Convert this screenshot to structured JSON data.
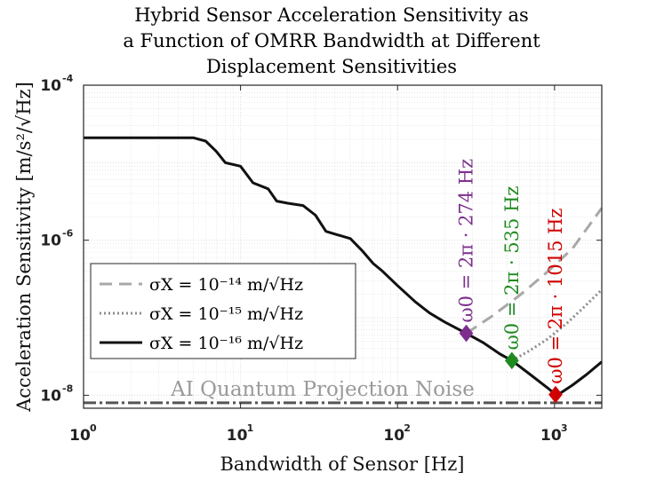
{
  "chart_data": {
    "type": "line",
    "title": [
      "Hybrid Sensor Acceleration Sensitivity as",
      "a Function of OMRR Bandwidth at Different",
      "Displacement Sensitivities"
    ],
    "xlabel": "Bandwidth of Sensor [Hz]",
    "ylabel": "Acceleration Sensitivity [m/s²/√Hz]",
    "xscale": "log",
    "yscale": "log",
    "xlim": [
      1,
      2000
    ],
    "ylim": [
      6.8e-09,
      0.0001
    ],
    "grid": true,
    "legend_position": "lower-left",
    "x_ticks": [
      {
        "value": 1,
        "base": "10",
        "exp": "0"
      },
      {
        "value": 10,
        "base": "10",
        "exp": "1"
      },
      {
        "value": 100,
        "base": "10",
        "exp": "2"
      },
      {
        "value": 1000,
        "base": "10",
        "exp": "3"
      }
    ],
    "y_ticks": [
      {
        "value": 1e-08,
        "base": "10",
        "exp": "-8"
      },
      {
        "value": 1e-06,
        "base": "10",
        "exp": "-6"
      },
      {
        "value": 0.0001,
        "base": "10",
        "exp": "-4"
      }
    ],
    "series": [
      {
        "name": "σx = 10^-14 m/√Hz",
        "legend_label": "σX = 10⁻¹⁴ m/√Hz",
        "style": "dashed",
        "color": "#a8a8a8",
        "x": [
          274,
          400,
          600,
          900,
          1300,
          2000
        ],
        "y": [
          6.3e-08,
          1.05e-07,
          1.95e-07,
          3.9e-07,
          7.8e-07,
          2.6e-06
        ]
      },
      {
        "name": "σx = 10^-15 m/√Hz",
        "legend_label": "σX = 10⁻¹⁵ m/√Hz",
        "style": "dotted",
        "color": "#8c8c8c",
        "x": [
          535,
          700,
          900,
          1200,
          1500,
          2000
        ],
        "y": [
          2.8e-08,
          3.8e-08,
          5.3e-08,
          8.5e-08,
          1.3e-07,
          2.3e-07
        ]
      },
      {
        "name": "σx = 10^-16 m/√Hz",
        "legend_label": "σX = 10⁻¹⁶ m/√Hz",
        "style": "solid",
        "color": "#111111",
        "x": [
          1,
          5,
          6,
          7,
          8,
          10,
          12,
          15,
          17,
          20,
          25,
          30,
          35,
          40,
          50,
          60,
          70,
          80,
          100,
          130,
          160,
          200,
          274,
          350,
          450,
          535,
          700,
          900,
          1015,
          1100,
          1300,
          1600,
          2000
        ],
        "y": [
          2.1e-05,
          2.1e-05,
          1.9e-05,
          1.4e-05,
          1e-05,
          9e-06,
          5.5e-06,
          4.6e-06,
          3.2e-06,
          3e-06,
          2.8e-06,
          2.1e-06,
          1.3e-06,
          1.2e-06,
          1.05e-06,
          7.2e-07,
          5e-07,
          4e-07,
          2.6e-07,
          1.6e-07,
          1.15e-07,
          8.8e-08,
          6.3e-08,
          4.8e-08,
          3.4e-08,
          2.8e-08,
          1.85e-08,
          1.25e-08,
          1.02e-08,
          1.08e-08,
          1.35e-08,
          1.85e-08,
          2.7e-08
        ]
      }
    ],
    "markers": [
      {
        "x": 274,
        "y": 6.3e-08,
        "color": "#7e2f8e",
        "label": "ω0 = 2π · 274 Hz"
      },
      {
        "x": 535,
        "y": 2.8e-08,
        "color": "#1f8a1f",
        "label": "ω0 = 2π · 535 Hz"
      },
      {
        "x": 1015,
        "y": 1.02e-08,
        "color": "#d00000",
        "label": "ω0 = 2π · 1015 Hz"
      }
    ],
    "reference_lines": [
      {
        "y": 8e-09,
        "label": "AI Quantum Projection Noise",
        "style": "dash-dot",
        "color": "#555555"
      }
    ]
  }
}
